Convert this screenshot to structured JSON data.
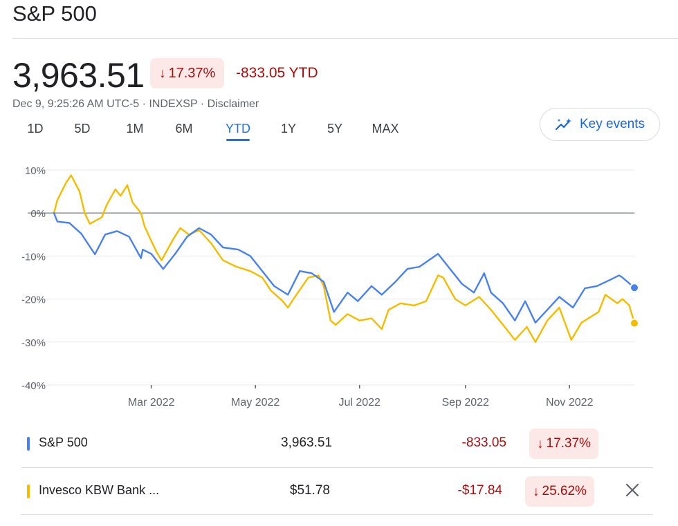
{
  "header": {
    "title": "S&P 500"
  },
  "quote": {
    "price": "3,963.51",
    "change_percent": "17.37%",
    "change_ytd": "-833.05 YTD",
    "meta": "Dec 9, 9:25:26 AM UTC-5 · INDEXSP · Disclaimer"
  },
  "tabs": [
    "1D",
    "5D",
    "1M",
    "6M",
    "YTD",
    "1Y",
    "5Y",
    "MAX"
  ],
  "active_tab": "YTD",
  "key_events": {
    "label": "Key events",
    "icon": "sparkle-trend-icon"
  },
  "colors": {
    "sp500": "#4a81e8",
    "kbw": "#f5bb00",
    "negative": "#a50e0e",
    "chip_bg": "#fce8e6",
    "accent": "#1a73e8"
  },
  "chart_data": {
    "type": "line",
    "y_unit": "%",
    "ylim": [
      -40,
      10
    ],
    "yticks": [
      "10%",
      "0%",
      "-10%",
      "-20%",
      "-30%",
      "-40%"
    ],
    "xticks": [
      "Mar 2022",
      "May 2022",
      "Jul 2022",
      "Sep 2022",
      "Nov 2022"
    ],
    "x_range": [
      "2022-01-03",
      "2022-12-09"
    ],
    "series": [
      {
        "name": "S&P 500",
        "color": "#4a81e8",
        "points": [
          [
            "2022-01-03",
            0
          ],
          [
            "2022-01-05",
            -2
          ],
          [
            "2022-01-12",
            -2.3
          ],
          [
            "2022-01-19",
            -4.8
          ],
          [
            "2022-01-27",
            -9.6
          ],
          [
            "2022-02-02",
            -5
          ],
          [
            "2022-02-09",
            -4.2
          ],
          [
            "2022-02-16",
            -5.5
          ],
          [
            "2022-02-23",
            -10.5
          ],
          [
            "2022-02-24",
            -8.5
          ],
          [
            "2022-03-01",
            -9.5
          ],
          [
            "2022-03-08",
            -13
          ],
          [
            "2022-03-15",
            -9.5
          ],
          [
            "2022-03-22",
            -5.5
          ],
          [
            "2022-03-29",
            -3.5
          ],
          [
            "2022-04-05",
            -5
          ],
          [
            "2022-04-12",
            -8
          ],
          [
            "2022-04-21",
            -8.5
          ],
          [
            "2022-04-28",
            -10
          ],
          [
            "2022-05-05",
            -13.5
          ],
          [
            "2022-05-12",
            -17
          ],
          [
            "2022-05-20",
            -19
          ],
          [
            "2022-05-27",
            -13.5
          ],
          [
            "2022-06-03",
            -14
          ],
          [
            "2022-06-10",
            -16
          ],
          [
            "2022-06-16",
            -23
          ],
          [
            "2022-06-24",
            -18.5
          ],
          [
            "2022-06-30",
            -20.5
          ],
          [
            "2022-07-08",
            -17
          ],
          [
            "2022-07-14",
            -19
          ],
          [
            "2022-07-22",
            -16
          ],
          [
            "2022-07-29",
            -13
          ],
          [
            "2022-08-05",
            -12.5
          ],
          [
            "2022-08-16",
            -9.5
          ],
          [
            "2022-08-23",
            -13
          ],
          [
            "2022-08-30",
            -16.5
          ],
          [
            "2022-09-06",
            -18.5
          ],
          [
            "2022-09-12",
            -14
          ],
          [
            "2022-09-16",
            -18.5
          ],
          [
            "2022-09-23",
            -21
          ],
          [
            "2022-09-30",
            -25
          ],
          [
            "2022-10-06",
            -20.5
          ],
          [
            "2022-10-12",
            -25.5
          ],
          [
            "2022-10-19",
            -22.5
          ],
          [
            "2022-10-26",
            -19.5
          ],
          [
            "2022-11-03",
            -22
          ],
          [
            "2022-11-10",
            -17.5
          ],
          [
            "2022-11-17",
            -17
          ],
          [
            "2022-11-25",
            -15.5
          ],
          [
            "2022-11-30",
            -14.5
          ],
          [
            "2022-12-02",
            -15
          ],
          [
            "2022-12-09",
            -17.4
          ]
        ],
        "end_value": -17.37
      },
      {
        "name": "Invesco KBW Bank ...",
        "color": "#f5bb00",
        "points": [
          [
            "2022-01-03",
            0
          ],
          [
            "2022-01-05",
            3
          ],
          [
            "2022-01-10",
            7
          ],
          [
            "2022-01-13",
            8.8
          ],
          [
            "2022-01-18",
            5
          ],
          [
            "2022-01-21",
            0
          ],
          [
            "2022-01-24",
            -2.5
          ],
          [
            "2022-01-31",
            -1
          ],
          [
            "2022-02-03",
            2
          ],
          [
            "2022-02-08",
            5.5
          ],
          [
            "2022-02-11",
            4
          ],
          [
            "2022-02-15",
            6.5
          ],
          [
            "2022-02-18",
            2.5
          ],
          [
            "2022-02-23",
            0
          ],
          [
            "2022-02-25",
            -3
          ],
          [
            "2022-03-01",
            -6.5
          ],
          [
            "2022-03-04",
            -9
          ],
          [
            "2022-03-07",
            -11
          ],
          [
            "2022-03-14",
            -6
          ],
          [
            "2022-03-18",
            -3.5
          ],
          [
            "2022-03-23",
            -5
          ],
          [
            "2022-03-29",
            -4
          ],
          [
            "2022-04-05",
            -7
          ],
          [
            "2022-04-12",
            -11
          ],
          [
            "2022-04-20",
            -12.5
          ],
          [
            "2022-04-28",
            -13.5
          ],
          [
            "2022-05-05",
            -15
          ],
          [
            "2022-05-10",
            -18
          ],
          [
            "2022-05-17",
            -20.5
          ],
          [
            "2022-05-20",
            -22
          ],
          [
            "2022-05-25",
            -19
          ],
          [
            "2022-06-01",
            -15
          ],
          [
            "2022-06-07",
            -14.5
          ],
          [
            "2022-06-10",
            -17
          ],
          [
            "2022-06-14",
            -25
          ],
          [
            "2022-06-17",
            -26
          ],
          [
            "2022-06-24",
            -23.5
          ],
          [
            "2022-07-01",
            -25
          ],
          [
            "2022-07-08",
            -24.5
          ],
          [
            "2022-07-14",
            -27
          ],
          [
            "2022-07-18",
            -22.5
          ],
          [
            "2022-07-25",
            -21
          ],
          [
            "2022-08-02",
            -21.5
          ],
          [
            "2022-08-09",
            -20.5
          ],
          [
            "2022-08-16",
            -14.5
          ],
          [
            "2022-08-19",
            -15
          ],
          [
            "2022-08-26",
            -20
          ],
          [
            "2022-09-01",
            -21.5
          ],
          [
            "2022-09-09",
            -19.5
          ],
          [
            "2022-09-16",
            -22.5
          ],
          [
            "2022-09-23",
            -26
          ],
          [
            "2022-09-30",
            -29.5
          ],
          [
            "2022-10-07",
            -26.5
          ],
          [
            "2022-10-12",
            -30
          ],
          [
            "2022-10-19",
            -25
          ],
          [
            "2022-10-26",
            -22
          ],
          [
            "2022-11-02",
            -29.5
          ],
          [
            "2022-11-08",
            -25.5
          ],
          [
            "2022-11-14",
            -24
          ],
          [
            "2022-11-18",
            -23
          ],
          [
            "2022-11-22",
            -19
          ],
          [
            "2022-11-29",
            -21
          ],
          [
            "2022-12-02",
            -20
          ],
          [
            "2022-12-06",
            -21.5
          ],
          [
            "2022-12-09",
            -25.6
          ]
        ],
        "end_value": -25.62
      }
    ]
  },
  "legend_rows": [
    {
      "name": "S&P 500",
      "price": "3,963.51",
      "change": "-833.05",
      "percent": "17.37%",
      "color": "#4a81e8"
    },
    {
      "name": "Invesco KBW Bank ...",
      "price": "$51.78",
      "change": "-$17.84",
      "percent": "25.62%",
      "color": "#f5bb00",
      "close_icon": "close-icon"
    }
  ]
}
